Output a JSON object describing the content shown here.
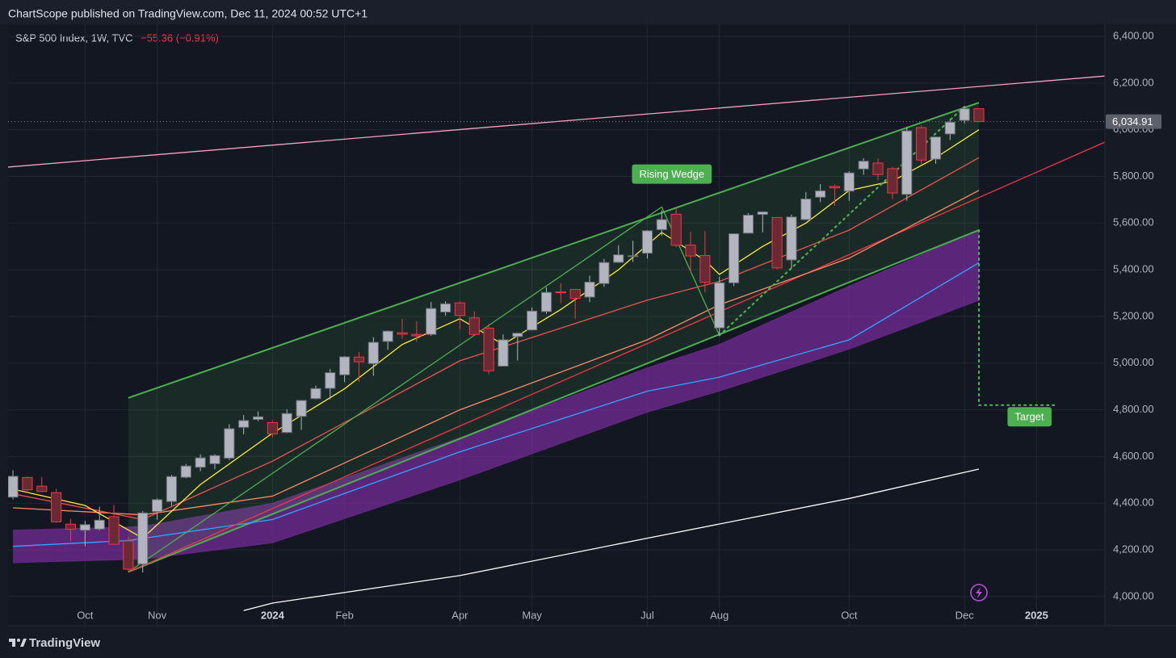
{
  "chart_data": {
    "type": "candlestick",
    "title": "ChartScope published on TradingView.com, Dec 11, 2024 00:52 UTC+1",
    "symbol": "S&P 500 Index, 1W, TVC",
    "change": "−55.36 (−0.91%)",
    "brand": "TradingView",
    "xlim": [
      -0.34,
      75.74
    ],
    "ylim": [
      3875,
      6452
    ],
    "grid": true,
    "xticks": [
      {
        "value": 5,
        "label": "Oct"
      },
      {
        "value": 10,
        "label": "Nov"
      },
      {
        "value": 18,
        "label": "2024"
      },
      {
        "value": 23,
        "label": "Feb"
      },
      {
        "value": 31,
        "label": "Apr"
      },
      {
        "value": 36,
        "label": "May"
      },
      {
        "value": 44,
        "label": "Jul"
      },
      {
        "value": 49,
        "label": "Aug"
      },
      {
        "value": 58,
        "label": "Oct"
      },
      {
        "value": 66,
        "label": "Dec"
      },
      {
        "value": 71,
        "label": "2025"
      }
    ],
    "yticks": [
      {
        "value": 4000,
        "label": "4,000.00"
      },
      {
        "value": 4200,
        "label": "4,200.00"
      },
      {
        "value": 4400,
        "label": "4,400.00"
      },
      {
        "value": 4600,
        "label": "4,600.00"
      },
      {
        "value": 4800,
        "label": "4,800.00"
      },
      {
        "value": 5000,
        "label": "5,000.00"
      },
      {
        "value": 5200,
        "label": "5,200.00"
      },
      {
        "value": 5400,
        "label": "5,400.00"
      },
      {
        "value": 5600,
        "label": "5,600.00"
      },
      {
        "value": 5800,
        "label": "5,800.00"
      },
      {
        "value": 6000,
        "label": "6,000.00"
      },
      {
        "value": 6200,
        "label": "6,200.00"
      },
      {
        "value": 6400,
        "label": "6,400.00"
      }
    ],
    "last_price": {
      "value": 6034.91,
      "label": "6,034.91"
    },
    "up_color": "#b2b5be",
    "down_color": "#f23645",
    "candles": {
      "x": [
        0,
        1,
        2,
        3,
        4,
        5,
        6,
        7,
        8,
        9,
        10,
        11,
        12,
        13,
        14,
        15,
        16,
        17,
        18,
        19,
        20,
        21,
        22,
        23,
        24,
        25,
        26,
        27,
        28,
        29,
        30,
        31,
        32,
        33,
        34,
        35,
        36,
        37,
        38,
        39,
        40,
        41,
        42,
        43,
        44,
        45,
        46,
        47,
        48,
        49,
        50,
        51,
        52,
        53,
        54,
        55,
        56,
        57,
        58,
        59,
        60,
        61,
        62,
        63,
        64,
        65,
        66,
        67
      ],
      "open": [
        4426,
        4510,
        4473,
        4445,
        4310,
        4284,
        4289,
        4342,
        4238,
        4139,
        4364,
        4407,
        4511,
        4554,
        4569,
        4593,
        4725,
        4759,
        4745,
        4703,
        4772,
        4848,
        4892,
        4950,
        5026,
        4998,
        5093,
        5130,
        5123,
        5123,
        5219,
        5258,
        5194,
        5150,
        4987,
        5114,
        5142,
        5221,
        5305,
        5316,
        5283,
        5341,
        5432,
        5459,
        5471,
        5572,
        5638,
        5506,
        5461,
        5151,
        5344,
        5557,
        5637,
        5624,
        5442,
        5615,
        5711,
        5757,
        5737,
        5832,
        5857,
        5833,
        5723,
        6009,
        5874,
        5982,
        6040,
        6090
      ],
      "high": [
        4541,
        4514,
        4511,
        4462,
        4333,
        4324,
        4385,
        4393,
        4256,
        4366,
        4421,
        4521,
        4568,
        4609,
        4609,
        4738,
        4778,
        4793,
        4754,
        4802,
        4842,
        4904,
        4975,
        5030,
        5048,
        5111,
        5140,
        5190,
        5179,
        5262,
        5265,
        5264,
        5222,
        5168,
        5123,
        5130,
        5239,
        5325,
        5342,
        5315,
        5375,
        5447,
        5505,
        5524,
        5570,
        5655,
        5669,
        5563,
        5566,
        5370,
        5556,
        5643,
        5651,
        5626,
        5636,
        5733,
        5767,
        5765,
        5822,
        5878,
        5878,
        5842,
        6012,
        6017,
        5971,
        6045,
        6099,
        6091
      ],
      "low": [
        4416,
        4442,
        4446,
        4316,
        4238,
        4216,
        4283,
        4223,
        4104,
        4103,
        4329,
        4389,
        4506,
        4537,
        4546,
        4584,
        4695,
        4751,
        4682,
        4700,
        4714,
        4845,
        4845,
        4919,
        4920,
        4946,
        5057,
        5104,
        5091,
        5117,
        5203,
        5146,
        5138,
        4953,
        4987,
        5011,
        5142,
        5211,
        5256,
        5191,
        5261,
        5327,
        5429,
        5433,
        5448,
        5546,
        5497,
        5390,
        5303,
        5119,
        5330,
        5555,
        5560,
        5402,
        5406,
        5615,
        5690,
        5674,
        5696,
        5807,
        5783,
        5703,
        5696,
        5853,
        5854,
        5956,
        6027,
        6032
      ],
      "close": [
        4515,
        4457,
        4450,
        4320,
        4288,
        4308,
        4327,
        4224,
        4117,
        4358,
        4415,
        4514,
        4559,
        4594,
        4604,
        4719,
        4754,
        4770,
        4697,
        4784,
        4840,
        4891,
        4959,
        5027,
        5006,
        5089,
        5137,
        5124,
        5117,
        5234,
        5254,
        5204,
        5123,
        4967,
        5100,
        5128,
        5223,
        5303,
        5304,
        5278,
        5347,
        5431,
        5464,
        5460,
        5567,
        5615,
        5505,
        5459,
        5346,
        5344,
        5554,
        5634,
        5648,
        5408,
        5626,
        5703,
        5738,
        5751,
        5815,
        5865,
        5808,
        5729,
        5995,
        5870,
        5969,
        6032,
        6090,
        6034.91
      ]
    },
    "bands": [
      {
        "color": "#7b2e9e",
        "x": [
          0,
          9,
          18,
          31,
          44,
          49,
          58,
          67
        ],
        "upper": [
          4284,
          4300,
          4400,
          4680,
          4980,
          5080,
          5330,
          5570
        ],
        "lower": [
          4145,
          4160,
          4230,
          4500,
          4790,
          4880,
          5060,
          5269
        ]
      },
      {
        "color": "#4caf50",
        "x": [
          8,
          67
        ],
        "upper": [
          4851,
          6116
        ],
        "lower": [
          4105,
          5570
        ]
      }
    ],
    "lines": [
      {
        "color": "#f7a1c4",
        "x": [
          -0.34,
          75.74
        ],
        "values": [
          5840,
          6230
        ]
      },
      {
        "color": "#ffffff",
        "x": [
          16,
          18,
          31,
          44,
          58,
          67
        ],
        "values": [
          3940,
          3972,
          4090,
          4250,
          4420,
          4546
        ]
      },
      {
        "color": "#2ea8ff",
        "x": [
          0,
          8,
          18,
          31,
          44,
          49,
          58,
          67
        ],
        "values": [
          4215,
          4240,
          4330,
          4620,
          4880,
          4940,
          5100,
          5430
        ]
      },
      {
        "color": "#f23645",
        "x": [
          8,
          75.74
        ],
        "values": [
          4105,
          5947
        ]
      },
      {
        "color": "#ff8a65",
        "x": [
          0,
          9,
          18,
          31,
          44,
          49,
          58,
          67
        ],
        "values": [
          4380,
          4350,
          4430,
          4800,
          5100,
          5250,
          5450,
          5740
        ]
      },
      {
        "color": "#ef5350",
        "x": [
          0,
          9,
          18,
          31,
          44,
          49,
          58,
          67
        ],
        "values": [
          4440,
          4330,
          4580,
          5010,
          5270,
          5350,
          5570,
          5880
        ]
      },
      {
        "color": "#ffeb3b",
        "x": [
          0,
          5,
          9,
          13,
          18,
          23,
          27,
          31,
          34,
          38,
          42,
          45,
          48,
          49,
          52,
          55,
          58,
          61,
          64,
          67
        ],
        "values": [
          4460,
          4390,
          4250,
          4480,
          4700,
          4890,
          5080,
          5190,
          5080,
          5230,
          5400,
          5560,
          5440,
          5380,
          5500,
          5600,
          5740,
          5780,
          5880,
          6000
        ]
      },
      {
        "color": "#4caf50",
        "x": [
          8,
          45,
          49
        ],
        "values": [
          4105,
          5669,
          5119
        ]
      },
      {
        "color": "#4caf50",
        "x": [
          49,
          66
        ],
        "values": [
          5119,
          6099
        ],
        "style": "dotted"
      },
      {
        "color": "#4caf50",
        "x": [
          67,
          67,
          72.5
        ],
        "values": [
          5570,
          4820,
          4820
        ],
        "style": "dotted"
      }
    ],
    "annotations": [
      {
        "text": "Rising Wedge",
        "x": 45.7,
        "y": 5810,
        "color": "#4caf50"
      },
      {
        "text": "Target",
        "x": 70.5,
        "y": 4770,
        "color": "#4caf50"
      }
    ]
  }
}
